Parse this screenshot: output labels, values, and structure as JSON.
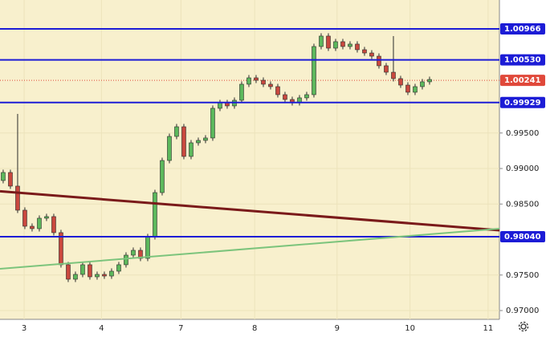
{
  "chart_data": {
    "type": "candlestick",
    "background": "#f8f0cd",
    "grid": true,
    "up_color": "#5cb85c",
    "down_color": "#c9483e",
    "ylim": [
      0.96876,
      1.01373
    ],
    "xlim": [
      -0.44,
      68.67
    ],
    "yticks": [
      {
        "value": 0.97,
        "label": "0.97000"
      },
      {
        "value": 0.975,
        "label": "0.97500"
      },
      {
        "value": 0.985,
        "label": "0.98500"
      },
      {
        "value": 0.99,
        "label": "0.99000"
      },
      {
        "value": 0.995,
        "label": "0.99500"
      }
    ],
    "xticks": [
      {
        "value": 2.9,
        "label": "3"
      },
      {
        "value": 13.6,
        "label": "4"
      },
      {
        "value": 24.6,
        "label": "7"
      },
      {
        "value": 34.8,
        "label": "8"
      },
      {
        "value": 46.2,
        "label": "9"
      },
      {
        "value": 56.3,
        "label": "10"
      },
      {
        "value": 67.1,
        "label": "11"
      }
    ],
    "open": [
      0.98831,
      0.98944,
      0.98752,
      0.98413,
      0.98187,
      0.98153,
      0.983,
      0.98323,
      0.98097,
      0.97645,
      0.97441,
      0.97509,
      0.97645,
      0.97475,
      0.97509,
      0.97486,
      0.97554,
      0.97645,
      0.9778,
      0.97848,
      0.97735,
      0.9804,
      0.98661,
      0.99113,
      0.99452,
      0.99588,
      0.9917,
      0.99362,
      0.99396,
      0.9943,
      0.99848,
      0.99927,
      0.99882,
      0.99961,
      1.00187,
      1.00277,
      1.00243,
      1.00187,
      1.00153,
      1.0004,
      0.99972,
      0.99927,
      0.99995,
      1.0004,
      1.00718,
      1.00865,
      1.00695,
      1.00786,
      1.00718,
      1.00752,
      1.00673,
      1.00627,
      1.00582,
      1.00447,
      1.00356,
      1.00266,
      1.00175,
      1.00074,
      1.00153,
      1.00221
    ],
    "high": [
      0.98984,
      0.98984,
      0.99769,
      0.98453,
      0.98227,
      0.9834,
      0.98363,
      0.98363,
      0.98137,
      0.97685,
      0.97549,
      0.97685,
      0.97685,
      0.97549,
      0.97549,
      0.97594,
      0.97685,
      0.9782,
      0.97888,
      0.97888,
      0.9808,
      0.98701,
      0.99153,
      0.99492,
      0.99628,
      0.99628,
      0.99402,
      0.99436,
      0.9947,
      0.99888,
      0.99967,
      0.99967,
      1.00001,
      1.00227,
      1.00317,
      1.00317,
      1.00283,
      1.00227,
      1.00193,
      1.0008,
      1.00012,
      1.00035,
      1.0008,
      1.00758,
      1.00905,
      1.00905,
      1.00826,
      1.00826,
      1.00792,
      1.00792,
      1.00713,
      1.00667,
      1.00622,
      1.00487,
      1.00865,
      1.00306,
      1.00215,
      1.00193,
      1.00261,
      1.00294
    ],
    "low": [
      0.98791,
      0.98712,
      0.98373,
      0.98147,
      0.98113,
      0.98113,
      0.9826,
      0.98057,
      0.97605,
      0.97401,
      0.97401,
      0.97469,
      0.97435,
      0.97435,
      0.97446,
      0.97446,
      0.97514,
      0.97605,
      0.9774,
      0.97695,
      0.97695,
      0.98,
      0.98621,
      0.99073,
      0.99412,
      0.9913,
      0.9913,
      0.99322,
      0.99356,
      0.9939,
      0.99808,
      0.99842,
      0.99842,
      0.99921,
      1.00147,
      1.00203,
      1.00147,
      1.00113,
      1.0,
      0.99932,
      0.99887,
      0.99887,
      0.99955,
      1.0,
      1.00678,
      1.00655,
      1.00655,
      1.00678,
      1.00678,
      1.00633,
      1.00587,
      1.00542,
      1.00407,
      1.00316,
      1.00226,
      1.00135,
      1.00034,
      1.00034,
      1.00113,
      1.00181
    ],
    "close": [
      0.98944,
      0.98752,
      0.98413,
      0.98187,
      0.98153,
      0.983,
      0.98323,
      0.98097,
      0.97645,
      0.97441,
      0.97509,
      0.97645,
      0.97475,
      0.97509,
      0.97486,
      0.97554,
      0.97645,
      0.9778,
      0.97848,
      0.97735,
      0.9804,
      0.98661,
      0.99113,
      0.99452,
      0.99588,
      0.9917,
      0.99362,
      0.99396,
      0.9943,
      0.99848,
      0.99927,
      0.99882,
      0.99961,
      1.00187,
      1.00277,
      1.00243,
      1.00187,
      1.00153,
      1.0004,
      0.99972,
      0.99927,
      0.99995,
      1.0004,
      1.00718,
      1.00865,
      1.00695,
      1.00786,
      1.00718,
      1.00752,
      1.00673,
      1.00627,
      1.00582,
      1.00447,
      1.00356,
      1.00266,
      1.00175,
      1.00074,
      1.00153,
      1.00221,
      1.00254
    ],
    "levels": [
      {
        "value": 1.00966,
        "label": "1.00966",
        "color": "#1c1cd6"
      },
      {
        "value": 1.0053,
        "label": "1.00530",
        "color": "#1c1cd6"
      },
      {
        "value": 0.99929,
        "label": "0.99929",
        "color": "#1c1cd6"
      },
      {
        "value": 0.9804,
        "label": "0.98040",
        "color": "#1c1cd6"
      },
      {
        "value": 1.00241,
        "label": "1.00241",
        "color": "#e0483a",
        "dashed": true
      }
    ],
    "trend_lines": [
      {
        "from": 0.98679,
        "to": 0.9813,
        "color": "#7a1a1a"
      },
      {
        "from": 0.97588,
        "to": 0.98153,
        "color": "#7cc47c"
      }
    ]
  }
}
